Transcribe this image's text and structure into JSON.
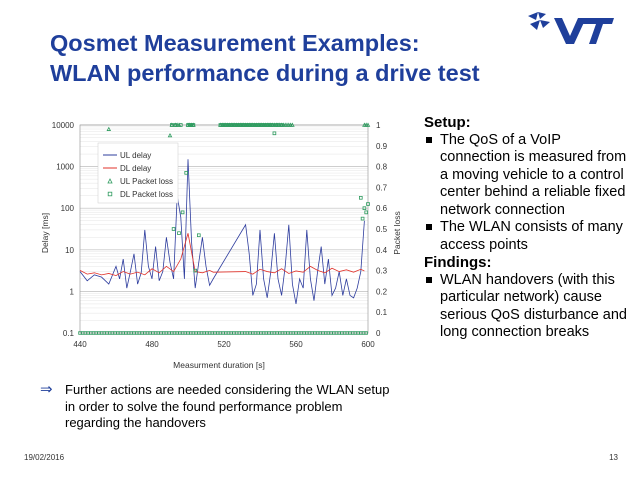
{
  "slide": {
    "title_line1": "Qosmet Measurement Examples:",
    "title_line2": "WLAN performance during a drive test",
    "date": "19/02/2016",
    "page_number": "13",
    "brand_color": "#1f3f9b",
    "logo_icon": "vtt-logo-icon"
  },
  "setup": {
    "heading": "Setup:",
    "items": [
      "The QoS of a VoIP connection is measured from a moving vehicle to a control center behind a reliable fixed network connection",
      "The WLAN consists of many access points"
    ]
  },
  "findings": {
    "heading": "Findings:",
    "items": [
      "WLAN handovers (with this particular network) cause serious QoS disturbance and long connection breaks"
    ]
  },
  "note": {
    "arrow": "⇒",
    "text": "Further actions are needed considering the WLAN setup in order to solve the found performance problem regarding the handovers"
  },
  "chart_data": {
    "type": "line",
    "xlabel": "Measurment duration [s]",
    "ylabel": "Delay [ms]",
    "y2label": "Packet loss",
    "xlim": [
      440,
      600
    ],
    "ylim": [
      0.1,
      10000
    ],
    "yscale": "log",
    "y2lim": [
      0,
      1
    ],
    "x_ticks": [
      "440",
      "480",
      "520",
      "560",
      "600"
    ],
    "y_ticks": [
      "0.1",
      "1",
      "10",
      "100",
      "1000",
      "10000"
    ],
    "y2_ticks": [
      "0",
      "0.1",
      "0.2",
      "0.3",
      "0.4",
      "0.5",
      "0.6",
      "0.7",
      "0.8",
      "0.9",
      "1"
    ],
    "grid": true,
    "legend": "top-left",
    "series": [
      {
        "name": "UL delay",
        "kind": "line",
        "axis": "left",
        "color": "#2e3d9e",
        "x": [
          440,
          444,
          448,
          452,
          456,
          460,
          462,
          464,
          466,
          468,
          470,
          472,
          474,
          476,
          478,
          480,
          482,
          484,
          486,
          488,
          490,
          492,
          494,
          496,
          498,
          500,
          502,
          504,
          506,
          508,
          510,
          512,
          514,
          532,
          534,
          536,
          538,
          540,
          542,
          544,
          546,
          548,
          550,
          552,
          554,
          556,
          558,
          560,
          562,
          564,
          566,
          568,
          570,
          572,
          574,
          576,
          578,
          580,
          582,
          584,
          586,
          588,
          590,
          592,
          594,
          596,
          598
        ],
        "y": [
          3,
          1.8,
          2.5,
          2.2,
          1.5,
          4,
          2,
          6,
          1.2,
          3,
          8,
          1.5,
          2.8,
          30,
          4,
          2,
          12,
          1.8,
          3,
          20,
          5,
          2,
          200,
          60,
          2,
          1500,
          15,
          1.2,
          5,
          20,
          4,
          1.4,
          2,
          40,
          8,
          0.8,
          1.5,
          30,
          2,
          0.7,
          3,
          25,
          2,
          0.8,
          4,
          40,
          1.5,
          0.5,
          2,
          1.2,
          30,
          2,
          0.6,
          3,
          12,
          1.5,
          6,
          0.8,
          1.2,
          3,
          0.8,
          2,
          0.8,
          0.7,
          1.2,
          3,
          50
        ]
      },
      {
        "name": "DL delay",
        "kind": "line",
        "axis": "left",
        "color": "#e0332b",
        "x": [
          440,
          444,
          448,
          452,
          456,
          460,
          464,
          468,
          472,
          476,
          480,
          484,
          488,
          492,
          496,
          500,
          504,
          508,
          512,
          514,
          532,
          536,
          540,
          544,
          548,
          552,
          556,
          560,
          564,
          568,
          572,
          576,
          580,
          584,
          588,
          592,
          596,
          598
        ],
        "y": [
          3.2,
          2.6,
          2.8,
          2.5,
          2.7,
          2.4,
          3,
          2.6,
          2.9,
          2.5,
          3.5,
          2.8,
          4,
          3,
          6,
          25,
          3,
          2.8,
          3.2,
          2.9,
          3,
          2.6,
          3.4,
          3,
          2.8,
          3.5,
          2.7,
          3.1,
          2.9,
          4,
          3.2,
          2.8,
          3.6,
          3,
          3.3,
          2.9,
          3.4,
          3.1
        ]
      },
      {
        "name": "UL Packet loss",
        "kind": "markers",
        "marker": "triangle",
        "axis": "right",
        "color": "#2e9b5f",
        "x": [
          456,
          490,
          491,
          493,
          494,
          495,
          500,
          501,
          502,
          503,
          518,
          519,
          520,
          521,
          522,
          523,
          524,
          525,
          526,
          527,
          528,
          529,
          530,
          531,
          532,
          533,
          534,
          535,
          536,
          537,
          538,
          539,
          540,
          541,
          542,
          543,
          544,
          545,
          546,
          547,
          548,
          549,
          550,
          551,
          552,
          553,
          554,
          555,
          556,
          557,
          558,
          598,
          599,
          600
        ],
        "y": [
          0.98,
          0.95,
          1,
          1,
          1,
          1,
          1,
          1,
          1,
          1,
          1,
          1,
          1,
          1,
          1,
          1,
          1,
          1,
          1,
          1,
          1,
          1,
          1,
          1,
          1,
          1,
          1,
          1,
          1,
          1,
          1,
          1,
          1,
          1,
          1,
          1,
          1,
          1,
          1,
          1,
          1,
          1,
          1,
          1,
          1,
          1,
          1,
          1,
          1,
          1,
          1,
          1,
          1,
          1
        ]
      },
      {
        "name": "DL Packet loss",
        "kind": "markers",
        "marker": "square",
        "axis": "right",
        "color": "#2e9b5f",
        "x": [
          491,
          492,
          493,
          495,
          496,
          497,
          499,
          500,
          501,
          502,
          503,
          504,
          506,
          518,
          519,
          520,
          521,
          522,
          523,
          524,
          525,
          526,
          527,
          528,
          529,
          530,
          531,
          532,
          533,
          534,
          535,
          536,
          537,
          538,
          539,
          540,
          541,
          542,
          543,
          544,
          545,
          546,
          547,
          548,
          549,
          550,
          552,
          596,
          597,
          598,
          599,
          600
        ],
        "y": [
          1,
          0.5,
          1,
          0.48,
          1,
          0.58,
          0.77,
          1,
          1,
          1,
          1,
          0.3,
          0.47,
          1,
          1,
          1,
          1,
          1,
          1,
          1,
          1,
          1,
          1,
          1,
          1,
          1,
          1,
          1,
          1,
          1,
          1,
          1,
          1,
          1,
          1,
          1,
          1,
          1,
          1,
          1,
          1,
          1,
          1,
          0.96,
          1,
          1,
          1,
          0.65,
          0.55,
          0.6,
          0.58,
          0.62
        ]
      }
    ],
    "baseline_packet_loss": {
      "x_from": 440,
      "x_to": 600,
      "value": 0
    }
  }
}
